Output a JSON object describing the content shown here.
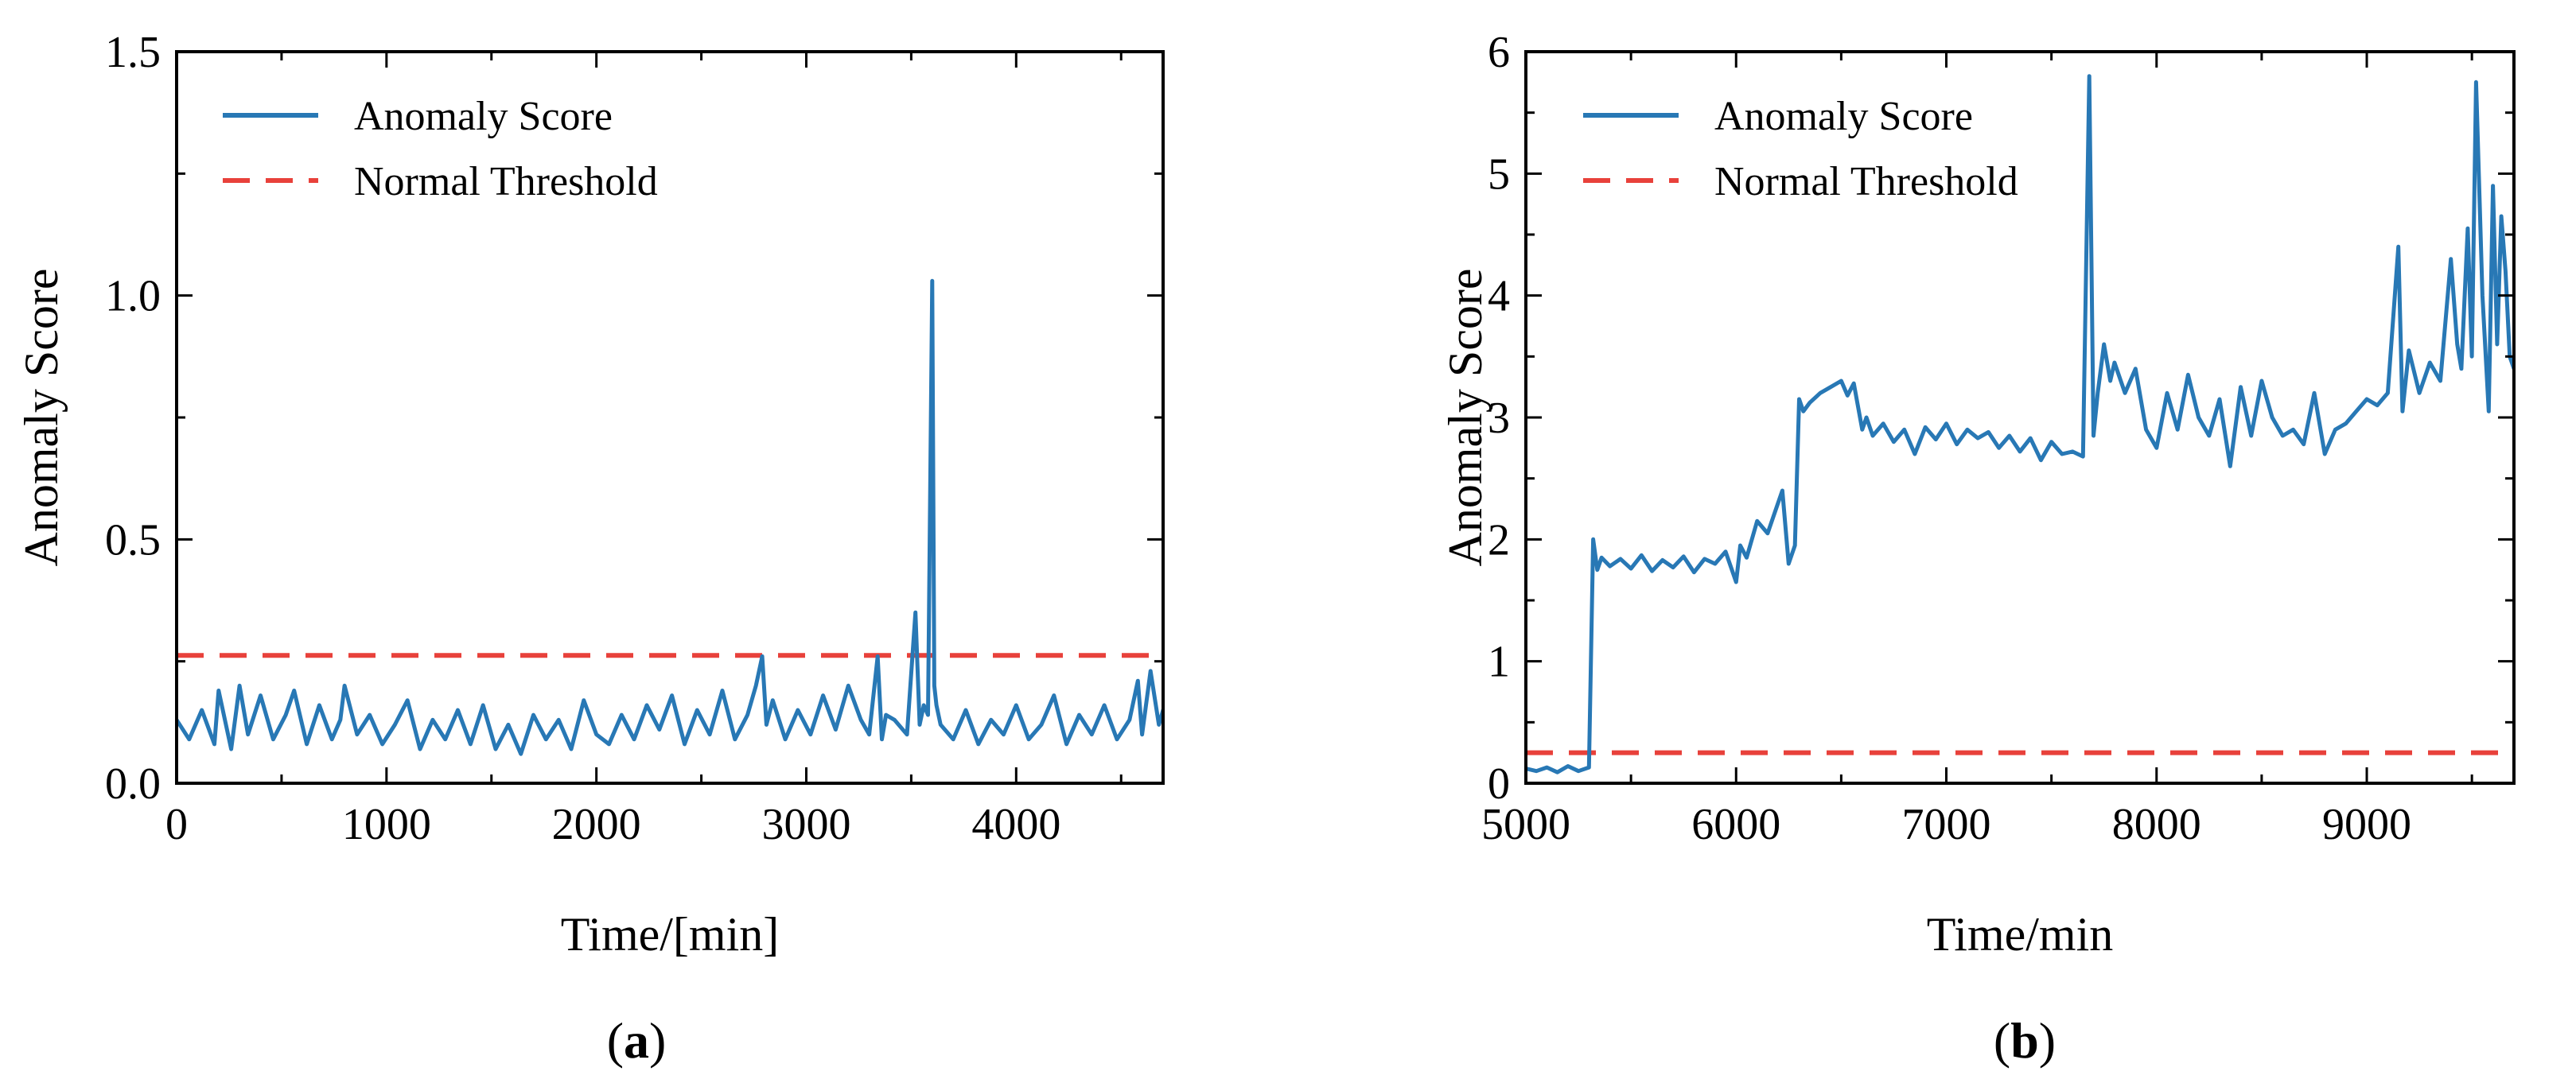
{
  "chart_data": [
    {
      "type": "line",
      "caption": {
        "open": "(",
        "letter": "a",
        "close": ")"
      },
      "title": "",
      "xlabel": "Time/[min]",
      "ylabel": "Anomaly Score",
      "xlim": [
        0,
        4700
      ],
      "ylim": [
        0,
        1.5
      ],
      "xticks": [
        0,
        1000,
        2000,
        3000,
        4000
      ],
      "xtick_labels": [
        "0",
        "1000",
        "2000",
        "3000",
        "4000"
      ],
      "yticks": [
        0.0,
        0.5,
        1.0,
        1.5
      ],
      "ytick_labels": [
        "0.0",
        "0.5",
        "1.0",
        "1.5"
      ],
      "grid": false,
      "legend": {
        "position": "top-left",
        "entries": [
          {
            "label": "Anomaly Score",
            "style": "solid",
            "color": "#2878b5"
          },
          {
            "label": "Normal Threshold",
            "style": "dashed",
            "color": "#e8413b"
          }
        ]
      },
      "threshold": 0.262,
      "series": [
        {
          "name": "Anomaly Score",
          "color": "#2878b5",
          "x": [
            0,
            60,
            120,
            180,
            200,
            260,
            300,
            340,
            400,
            460,
            520,
            560,
            620,
            680,
            740,
            780,
            800,
            860,
            920,
            980,
            1040,
            1100,
            1160,
            1220,
            1280,
            1340,
            1400,
            1460,
            1520,
            1580,
            1640,
            1700,
            1760,
            1820,
            1880,
            1940,
            2000,
            2060,
            2120,
            2180,
            2240,
            2300,
            2360,
            2420,
            2480,
            2540,
            2600,
            2660,
            2720,
            2760,
            2790,
            2810,
            2840,
            2900,
            2960,
            3020,
            3080,
            3140,
            3200,
            3260,
            3300,
            3340,
            3360,
            3380,
            3420,
            3480,
            3520,
            3540,
            3560,
            3580,
            3600,
            3610,
            3620,
            3640,
            3700,
            3760,
            3820,
            3880,
            3940,
            4000,
            4060,
            4120,
            4180,
            4240,
            4300,
            4360,
            4420,
            4480,
            4540,
            4580,
            4600,
            4640,
            4680,
            4700
          ],
          "values": [
            0.13,
            0.09,
            0.15,
            0.08,
            0.19,
            0.07,
            0.2,
            0.1,
            0.18,
            0.09,
            0.14,
            0.19,
            0.08,
            0.16,
            0.09,
            0.13,
            0.2,
            0.1,
            0.14,
            0.08,
            0.12,
            0.17,
            0.07,
            0.13,
            0.09,
            0.15,
            0.08,
            0.16,
            0.07,
            0.12,
            0.06,
            0.14,
            0.09,
            0.13,
            0.07,
            0.17,
            0.1,
            0.08,
            0.14,
            0.09,
            0.16,
            0.11,
            0.18,
            0.08,
            0.15,
            0.1,
            0.19,
            0.09,
            0.14,
            0.2,
            0.26,
            0.12,
            0.17,
            0.09,
            0.15,
            0.1,
            0.18,
            0.11,
            0.2,
            0.13,
            0.1,
            0.26,
            0.09,
            0.14,
            0.13,
            0.1,
            0.35,
            0.12,
            0.16,
            0.14,
            1.03,
            0.2,
            0.16,
            0.12,
            0.09,
            0.15,
            0.08,
            0.13,
            0.1,
            0.16,
            0.09,
            0.12,
            0.18,
            0.08,
            0.14,
            0.1,
            0.16,
            0.09,
            0.13,
            0.21,
            0.1,
            0.23,
            0.12,
            0.15
          ]
        }
      ]
    },
    {
      "type": "line",
      "caption": {
        "open": "(",
        "letter": "b",
        "close": ")"
      },
      "title": "",
      "xlabel": "Time/min",
      "ylabel": "Anomaly Score",
      "xlim": [
        5000,
        9700
      ],
      "ylim": [
        0,
        6
      ],
      "xticks": [
        5000,
        6000,
        7000,
        8000,
        9000
      ],
      "xtick_labels": [
        "5000",
        "6000",
        "7000",
        "8000",
        "9000"
      ],
      "yticks": [
        0,
        1,
        2,
        3,
        4,
        5,
        6
      ],
      "ytick_labels": [
        "0",
        "1",
        "2",
        "3",
        "4",
        "5",
        "6"
      ],
      "grid": false,
      "legend": {
        "position": "top-left",
        "entries": [
          {
            "label": "Anomaly Score",
            "style": "solid",
            "color": "#2878b5"
          },
          {
            "label": "Normal Threshold",
            "style": "dashed",
            "color": "#e8413b"
          }
        ]
      },
      "threshold": 0.25,
      "series": [
        {
          "name": "Anomaly Score",
          "color": "#2878b5",
          "x": [
            5000,
            5050,
            5100,
            5150,
            5200,
            5250,
            5300,
            5320,
            5340,
            5360,
            5400,
            5450,
            5500,
            5550,
            5600,
            5650,
            5700,
            5750,
            5800,
            5850,
            5900,
            5950,
            6000,
            6020,
            6050,
            6100,
            6150,
            6200,
            6220,
            6250,
            6280,
            6300,
            6320,
            6350,
            6400,
            6450,
            6500,
            6530,
            6560,
            6600,
            6620,
            6650,
            6700,
            6750,
            6800,
            6850,
            6900,
            6950,
            7000,
            7050,
            7100,
            7150,
            7200,
            7250,
            7300,
            7350,
            7400,
            7450,
            7500,
            7550,
            7600,
            7650,
            7680,
            7700,
            7720,
            7750,
            7780,
            7800,
            7850,
            7900,
            7950,
            8000,
            8050,
            8100,
            8150,
            8200,
            8250,
            8300,
            8350,
            8400,
            8450,
            8500,
            8550,
            8600,
            8650,
            8700,
            8750,
            8800,
            8850,
            8900,
            8950,
            9000,
            9050,
            9100,
            9150,
            9170,
            9200,
            9250,
            9300,
            9350,
            9400,
            9430,
            9450,
            9480,
            9500,
            9520,
            9550,
            9580,
            9600,
            9620,
            9640,
            9660,
            9680,
            9700
          ],
          "values": [
            0.12,
            0.1,
            0.13,
            0.09,
            0.14,
            0.1,
            0.13,
            2.0,
            1.75,
            1.85,
            1.78,
            1.84,
            1.76,
            1.87,
            1.74,
            1.83,
            1.77,
            1.86,
            1.73,
            1.84,
            1.8,
            1.9,
            1.65,
            1.95,
            1.85,
            2.15,
            2.05,
            2.3,
            2.4,
            1.8,
            1.95,
            3.15,
            3.05,
            3.12,
            3.2,
            3.25,
            3.3,
            3.18,
            3.28,
            2.9,
            3.0,
            2.85,
            2.95,
            2.8,
            2.9,
            2.7,
            2.92,
            2.82,
            2.95,
            2.78,
            2.9,
            2.83,
            2.88,
            2.75,
            2.85,
            2.72,
            2.83,
            2.65,
            2.8,
            2.7,
            2.72,
            2.68,
            5.8,
            2.85,
            3.2,
            3.6,
            3.3,
            3.45,
            3.2,
            3.4,
            2.9,
            2.75,
            3.2,
            2.9,
            3.35,
            3.0,
            2.85,
            3.15,
            2.6,
            3.25,
            2.85,
            3.3,
            3.0,
            2.85,
            2.9,
            2.78,
            3.2,
            2.7,
            2.9,
            2.95,
            3.05,
            3.15,
            3.1,
            3.2,
            4.4,
            3.05,
            3.55,
            3.2,
            3.45,
            3.3,
            4.3,
            3.6,
            3.4,
            4.55,
            3.5,
            5.75,
            4.0,
            3.05,
            4.9,
            3.6,
            4.65,
            4.2,
            3.5,
            3.4
          ]
        }
      ]
    }
  ]
}
